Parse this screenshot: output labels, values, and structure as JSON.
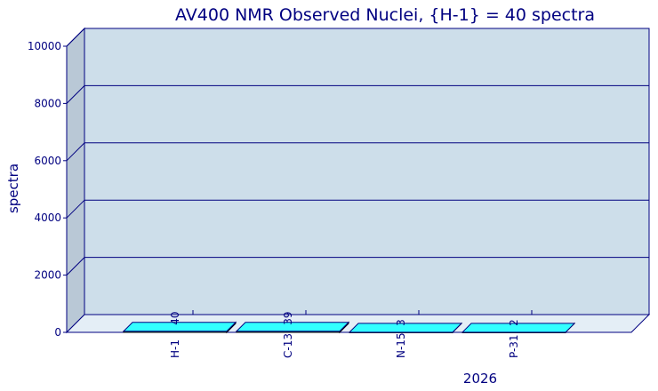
{
  "chart_data": {
    "type": "bar3d",
    "title": "AV400 NMR Observed Nuclei, {H-1} = 40 spectra",
    "categories": [
      "H-1",
      "C-13",
      "N-15",
      "P-31"
    ],
    "values": [
      40,
      39,
      3,
      2
    ],
    "color": "#33ffff",
    "xlabel": "2026",
    "ylabel": "spectra",
    "ylim": [
      0,
      10000
    ],
    "yticks": [
      0,
      2000,
      4000,
      6000,
      8000,
      10000
    ],
    "grid": true
  }
}
